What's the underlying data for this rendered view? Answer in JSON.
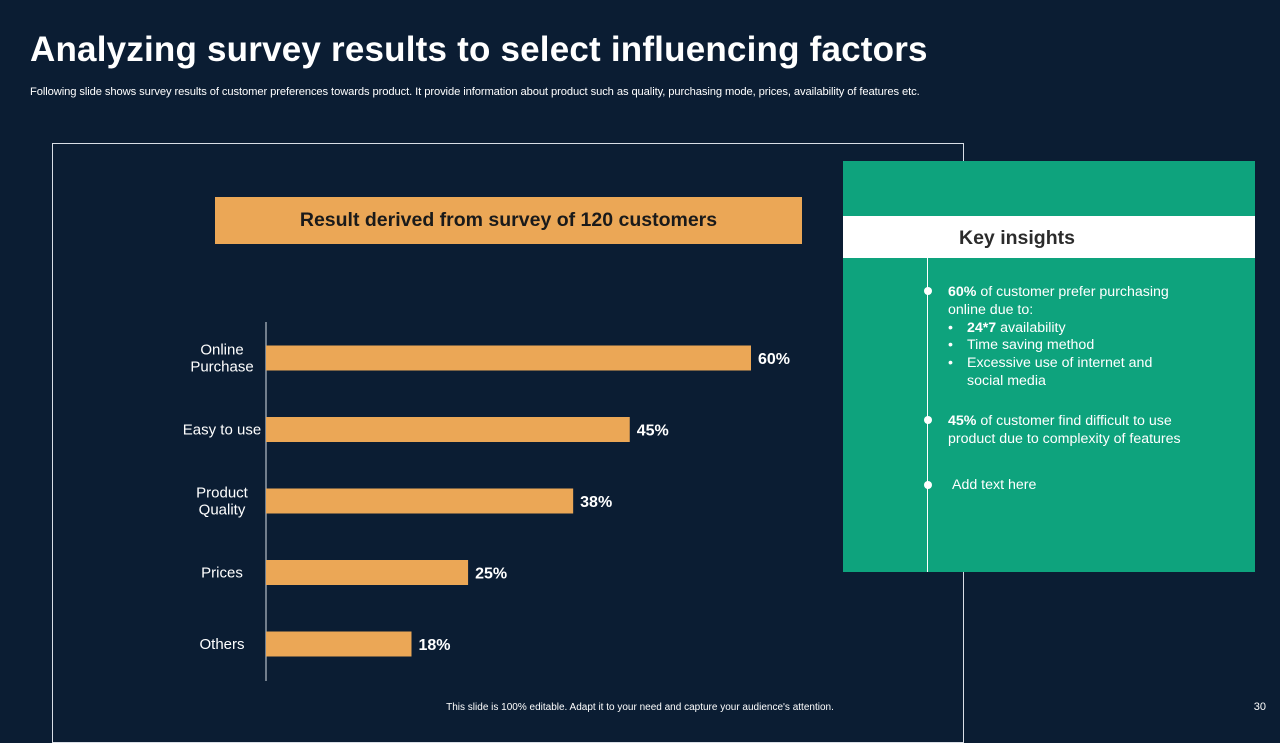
{
  "slide": {
    "title": "Analyzing survey results to select influencing factors",
    "subtitle": "Following slide shows survey results of customer preferences towards product. It provide information about product such as quality, purchasing mode, prices, availability of features etc.",
    "footer_note": "This slide is 100% editable.  Adapt it to your need and capture your audience's attention.",
    "page_number": "30"
  },
  "colors": {
    "background": "#0b1d33",
    "bar": "#eba756",
    "insights_panel": "#0ea37d"
  },
  "chart_data": {
    "type": "bar",
    "orientation": "horizontal",
    "title": "Result derived from survey of 120 customers",
    "categories": [
      [
        "Online",
        "Purchase"
      ],
      [
        "Easy to use"
      ],
      [
        "Product",
        "Quality"
      ],
      [
        "Prices"
      ],
      [
        "Others"
      ]
    ],
    "values": [
      60,
      45,
      38,
      25,
      18
    ],
    "value_labels": [
      "60%",
      "45%",
      "38%",
      "25%",
      "18%"
    ],
    "unit": "%",
    "xlim": [
      0,
      100
    ],
    "grid": false
  },
  "insights": {
    "heading": "Key insights",
    "item1": {
      "bold": "60%",
      "text": " of customer prefer purchasing online due to:",
      "sub_items": [
        {
          "bold": "24*7",
          "text": " availability"
        },
        {
          "bold": "",
          "text": "Time saving method"
        },
        {
          "bold": "",
          "text": "Excessive use of internet and social media"
        }
      ]
    },
    "item2": {
      "bold": "45%",
      "text": " of customer find difficult to use product due to complexity of features"
    },
    "item3": {
      "text": "Add text here"
    }
  }
}
